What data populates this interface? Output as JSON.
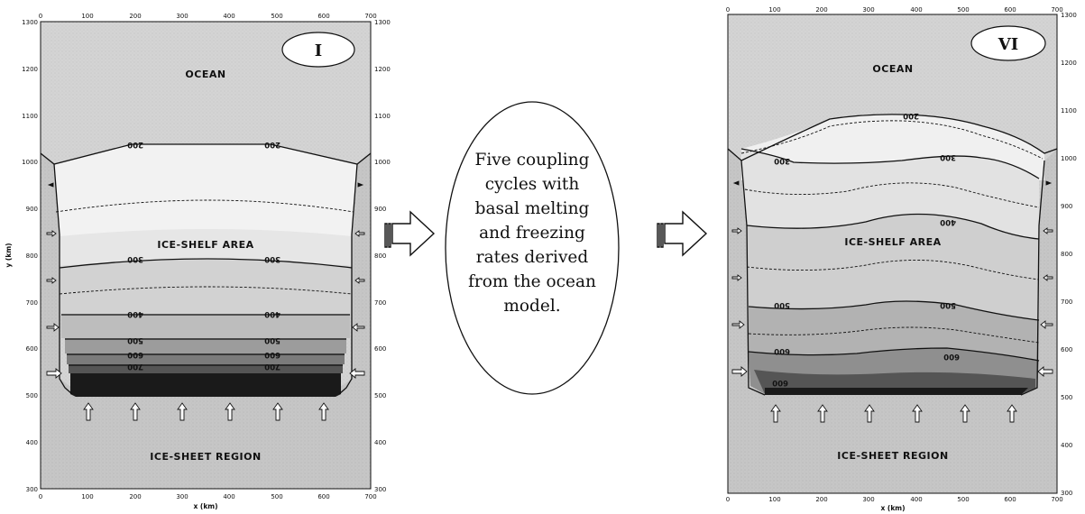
{
  "panel_I": {
    "roman": "I",
    "ocean_label": "OCEAN",
    "shelf_label": "ICE-SHELF AREA",
    "sheet_label": "ICE-SHEET REGION",
    "xlabel": "x (km)",
    "ylabel": "y (km)",
    "contour_labels": [
      "200",
      "200",
      "300",
      "300",
      "400",
      "400",
      "500",
      "500",
      "600",
      "600",
      "700",
      "700"
    ]
  },
  "panel_VI": {
    "roman": "VI",
    "ocean_label": "OCEAN",
    "shelf_label": "ICE-SHELF AREA",
    "sheet_label": "ICE-SHEET REGION",
    "xlabel": "x (km)",
    "contour_labels": [
      "200",
      "300",
      "300",
      "400",
      "500",
      "500",
      "600",
      "600",
      "600"
    ]
  },
  "axes": {
    "x_ticks": [
      "0",
      "100",
      "200",
      "300",
      "400",
      "500",
      "600",
      "700"
    ],
    "y_ticks": [
      "300",
      "400",
      "500",
      "600",
      "700",
      "800",
      "900",
      "1000",
      "1100",
      "1200",
      "1300"
    ]
  },
  "middle_text": [
    "Five coupling",
    "cycles with",
    "basal melting",
    "and freezing",
    "rates derived",
    "from the ocean",
    "model."
  ],
  "colors": {
    "ocean": "#d9d9d9",
    "sheet": "#c7c7c7",
    "band_light": "#e9e9e9",
    "band_dark": "#111111"
  }
}
